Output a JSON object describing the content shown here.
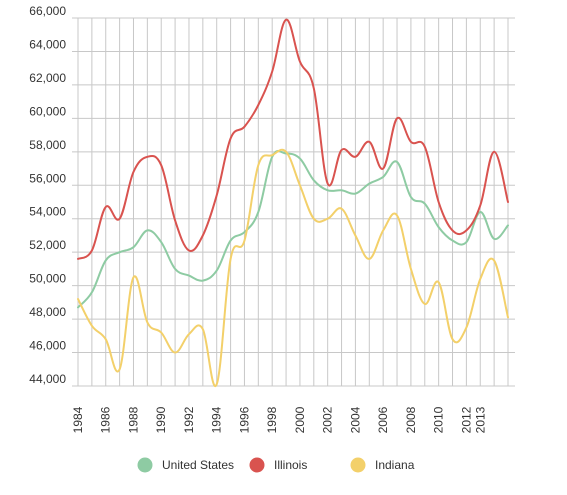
{
  "chart_data": {
    "type": "line",
    "title": "",
    "xlabel": "",
    "ylabel": "",
    "ylim": [
      44000,
      66000
    ],
    "grid": true,
    "legend_placement": "bottom",
    "y_ticks": [
      "44,000",
      "46,000",
      "48,000",
      "50,000",
      "52,000",
      "54,000",
      "56,000",
      "58,000",
      "60,000",
      "62,000",
      "64,000",
      "66,000"
    ],
    "x_tick_labels": [
      "1984",
      "1986",
      "1988",
      "1990",
      "1992",
      "1994",
      "1996",
      "1998",
      "2000",
      "2002",
      "2004",
      "2006",
      "2008",
      "2010",
      "2012",
      "2013"
    ],
    "x": [
      1984,
      1985,
      1986,
      1987,
      1988,
      1989,
      1990,
      1991,
      1992,
      1993,
      1994,
      1995,
      1996,
      1997,
      1998,
      1999,
      2000,
      2001,
      2002,
      2003,
      2004,
      2005,
      2006,
      2007,
      2008,
      2009,
      2010,
      2011,
      2012,
      2013,
      2014,
      2015
    ],
    "series": [
      {
        "name": "United States",
        "color": "#8ecba3",
        "values": [
          48700,
          49600,
          51500,
          52000,
          52300,
          53300,
          52600,
          51000,
          50600,
          50300,
          50900,
          52700,
          53200,
          54400,
          57700,
          57900,
          57600,
          56300,
          55700,
          55700,
          55500,
          56100,
          56500,
          57400,
          55300,
          54900,
          53500,
          52700,
          52600,
          54400,
          52800,
          53600
        ]
      },
      {
        "name": "Illinois",
        "color": "#d9534f",
        "values": [
          51600,
          52100,
          54700,
          54000,
          56800,
          57700,
          57200,
          53900,
          52100,
          53000,
          55400,
          58800,
          59500,
          60800,
          62800,
          65900,
          63400,
          61800,
          56100,
          58100,
          57700,
          58600,
          57000,
          60000,
          58600,
          58300,
          55000,
          53300,
          53300,
          54800,
          58000,
          55000
        ]
      },
      {
        "name": "Indiana",
        "color": "#f3d06a",
        "values": [
          49200,
          47600,
          46800,
          45000,
          50500,
          47800,
          47200,
          46000,
          47100,
          47400,
          44100,
          51600,
          52700,
          57200,
          57800,
          58000,
          56000,
          54000,
          54000,
          54600,
          53000,
          51600,
          53300,
          54200,
          51000,
          48900,
          50200,
          46800,
          47500,
          50400,
          51500,
          48100
        ]
      }
    ]
  }
}
